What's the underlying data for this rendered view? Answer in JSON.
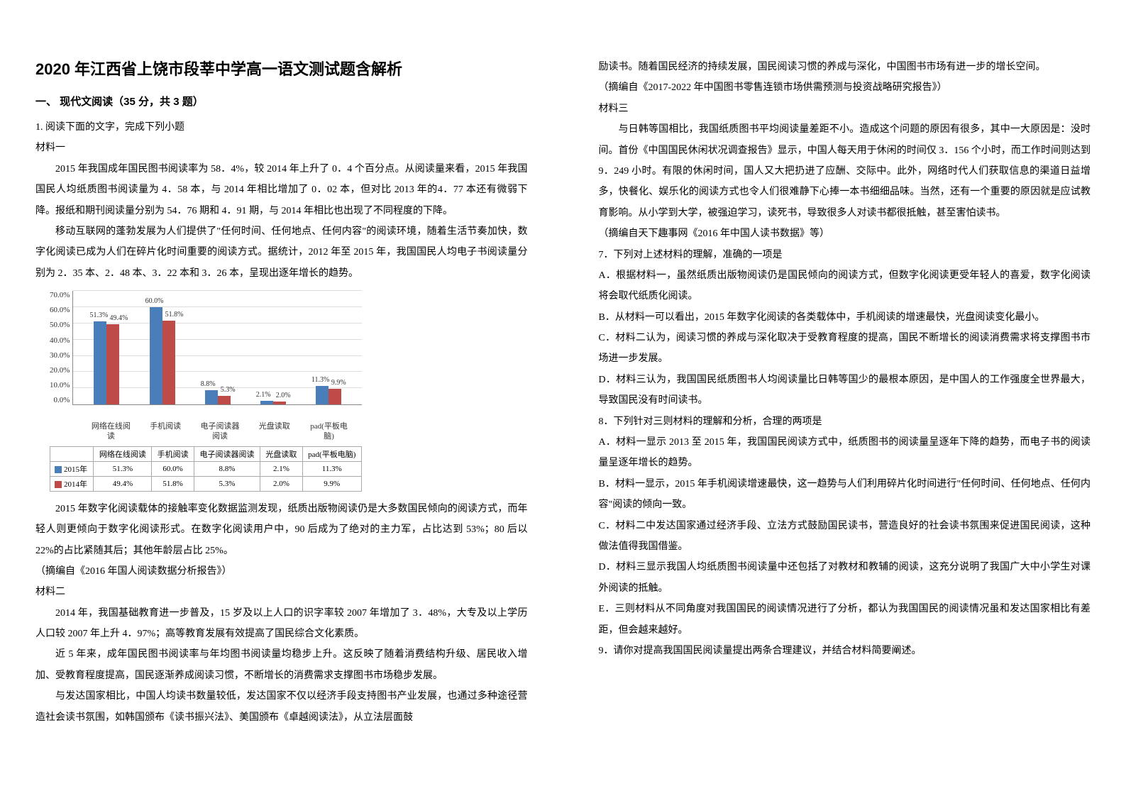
{
  "title": "2020 年江西省上饶市段莘中学高一语文测试题含解析",
  "section1_header": "一、 现代文阅读（35 分，共 3 题）",
  "q1_intro": "1. 阅读下面的文字，完成下列小题",
  "mat1_label": "材料一",
  "mat1_p1": "2015 年我国成年国民图书阅读率为 58．4%，较 2014 年上升了 0．4 个百分点。从阅读量来看，2015 年我国国民人均纸质图书阅读量为 4．58 本，与 2014 年相比增加了 0．02 本，但对比 2013 年的4．77 本还有微弱下降。报纸和期刊阅读量分别为 54．76 期和 4．91 期，与 2014 年相比也出现了不同程度的下降。",
  "mat1_p2": "移动互联网的蓬勃发展为人们提供了\"任何时间、任何地点、任何内容\"的阅读环境，随着生活节奏加快，数字化阅读已成为人们在碎片化时间重要的阅读方式。据统计，2012 年至 2015 年，我国国民人均电子书阅读量分别为 2．35 本、2．48 本、3．22 本和 3．26 本，呈现出逐年增长的趋势。",
  "chart": {
    "type": "bar",
    "ylim": [
      0,
      70
    ],
    "ytick_step": 10,
    "yticks": [
      "70.0%",
      "60.0%",
      "50.0%",
      "40.0%",
      "30.0%",
      "20.0%",
      "10.0%",
      "0.0%"
    ],
    "categories": [
      "网络在线阅读",
      "手机阅读",
      "电子阅读器阅读",
      "光盘读取",
      "pad(平板电脑)"
    ],
    "series": [
      {
        "name": "2015年",
        "color": "#4a7ebb",
        "values": [
          51.3,
          60.0,
          8.8,
          2.1,
          11.3
        ],
        "labels": [
          "51.3%",
          "60.0%",
          "8.8%",
          "2.1%",
          "11.3%"
        ]
      },
      {
        "name": "2014年",
        "color": "#be4b48",
        "values": [
          49.4,
          51.8,
          5.3,
          2.0,
          9.9
        ],
        "labels": [
          "49.4%",
          "51.8%",
          "5.3%",
          "2.0%",
          "9.9%"
        ]
      }
    ],
    "grid_color": "#dddddd",
    "background_color": "#ffffff"
  },
  "mat1_p3": "2015 年数字化阅读载体的接触率变化数据监测发现，纸质出版物阅读仍是大多数国民倾向的阅读方式，而年轻人则更倾向于数字化阅读形式。在数字化阅读用户中，90 后成为了绝对的主力军，占比达到 53%；80 后以 22%的占比紧随其后；其他年龄层占比 25%。",
  "mat1_src": "（摘编自《2016 年国人阅读数据分析报告》）",
  "mat2_label": "材料二",
  "mat2_p1": "2014 年，我国基础教育进一步普及，15 岁及以上人口的识字率较 2007 年增加了 3．48%，大专及以上学历人口较 2007 年上升 4．97%；高等教育发展有效提高了国民综合文化素质。",
  "mat2_p2": "近 5 年来，成年国民图书阅读率与年均图书阅读量均稳步上升。这反映了随着消费结构升级、居民收入增加、受教育程度提高，国民逐渐养成阅读习惯，不断增长的消费需求支撑图书市场稳步发展。",
  "mat2_p3": "与发达国家相比，中国人均读书数量较低，发达国家不仅以经济手段支持图书产业发展，也通过多种途径营造社会读书氛围，如韩国颁布《读书振兴法》、美国颁布《卓越阅读法》，从立法层面鼓",
  "right_p1": "励读书。随着国民经济的持续发展，国民阅读习惯的养成与深化，中国图书市场有进一步的增长空间。",
  "mat2_src": "（摘编自《2017-2022 年中国图书零售连锁市场供需预测与投资战略研究报告》）",
  "mat3_label": "材料三",
  "mat3_p1": "与日韩等国相比，我国纸质图书平均阅读量差距不小。造成这个问题的原因有很多，其中一大原因是：没时间。首份《中国国民休闲状况调查报告》显示，中国人每天用于休闲的时间仅 3．156 个小时，而工作时间则达到 9．249 小时。有限的休闲时间，国人又大把扔进了应酬、交际中。此外，网络时代人们获取信息的渠道日益增多，快餐化、娱乐化的阅读方式也令人们很难静下心捧一本书细细品味。当然，还有一个重要的原因就是应试教育影响。从小学到大学，被强迫学习，读死书，导致很多人对读书都很抵触，甚至害怕读书。",
  "mat3_src": "（摘编自天下趣事网《2016 年中国人读书数据》等）",
  "q7": "7．下列对上述材料的理解，准确的一项是",
  "q7a": "A．根据材料一，虽然纸质出版物阅读仍是国民倾向的阅读方式，但数字化阅读更受年轻人的喜爱，数字化阅读将会取代纸质化阅读。",
  "q7b": "B．从材料一可以看出，2015 年数字化阅读的各类载体中，手机阅读的增速最快，光盘阅读变化最小。",
  "q7c": "C．材料二认为，阅读习惯的养成与深化取决于受教育程度的提高，国民不断增长的阅读消费需求将支撑图书市场进一步发展。",
  "q7d": "D．材料三认为，我国国民纸质图书人均阅读量比日韩等国少的最根本原因，是中国人的工作强度全世界最大，导致国民没有时间读书。",
  "q8": "8．下列针对三则材料的理解和分析，合理的两项是",
  "q8a": "A．材料一显示 2013 至 2015 年，我国国民阅读方式中，纸质图书的阅读量呈逐年下降的趋势，而电子书的阅读量呈逐年增长的趋势。",
  "q8b": "B．材料一显示，2015 年手机阅读增速最快，这一趋势与人们利用碎片化时间进行\"任何时间、任何地点、任何内容\"阅读的倾向一致。",
  "q8c": "C．材料二中发达国家通过经济手段、立法方式鼓励国民读书，营造良好的社会读书氛围来促进国民阅读，这种做法值得我国借鉴。",
  "q8d": "D．材料三显示我国人均纸质图书阅读量中还包括了对教材和教辅的阅读，这充分说明了我国广大中小学生对课外阅读的抵触。",
  "q8e": "E．三则材料从不同角度对我国国民的阅读情况进行了分析，都认为我国国民的阅读情况虽和发达国家相比有差距，但会越来越好。",
  "q9": "9．请你对提高我国国民阅读量提出两条合理建议，并结合材料简要阐述。"
}
